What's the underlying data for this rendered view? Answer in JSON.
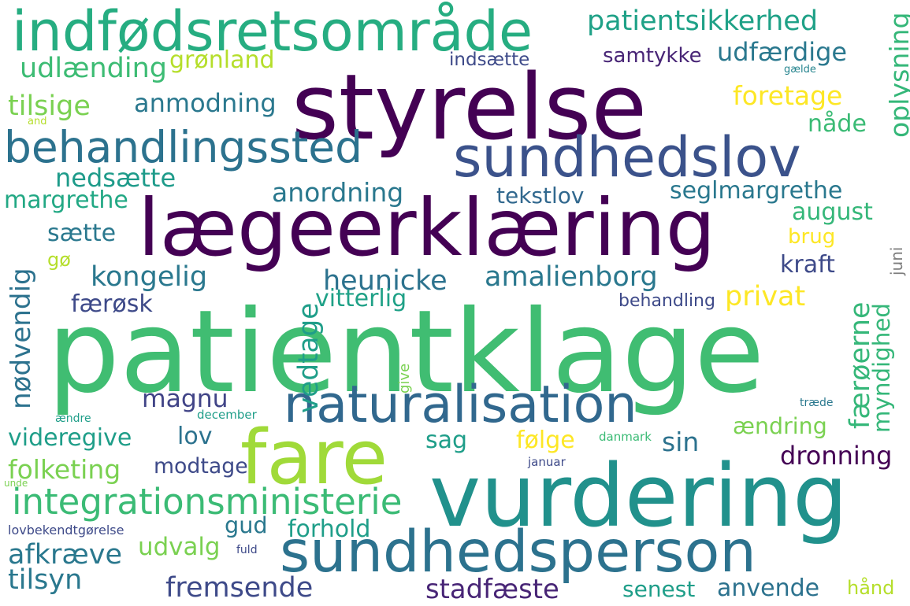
{
  "words": [
    {
      "text": "patientklage",
      "color": "#40bd72"
    },
    {
      "text": "styrelse",
      "color": "#440154"
    },
    {
      "text": "lægeerklæring",
      "color": "#440154"
    },
    {
      "text": "vurdering",
      "color": "#21918c"
    },
    {
      "text": "indfødsretsområde",
      "color": "#26ad81"
    },
    {
      "text": "sundhedslov",
      "color": "#3b528b"
    },
    {
      "text": "fare",
      "color": "#a0da39"
    },
    {
      "text": "sundhedsperson",
      "color": "#2c728e"
    },
    {
      "text": "naturalisation",
      "color": "#31688e"
    },
    {
      "text": "behandlingssted",
      "color": "#2c728e"
    },
    {
      "text": "integrationsministerie",
      "color": "#3bbb75"
    },
    {
      "text": "patientsikkerhed",
      "color": "#1fa187"
    },
    {
      "text": "udfærdige",
      "color": "#2a788e"
    },
    {
      "text": "udlænding",
      "color": "#3dbc74"
    },
    {
      "text": "grønland",
      "color": "#b5de2b"
    },
    {
      "text": "indsætte",
      "color": "#3e4a89"
    },
    {
      "text": "samtykke",
      "color": "#482576"
    },
    {
      "text": "gælde",
      "color": "#25848e"
    },
    {
      "text": "tilsige",
      "color": "#7ad151"
    },
    {
      "text": "anmodning",
      "color": "#2a788e"
    },
    {
      "text": "foretage",
      "color": "#fde725"
    },
    {
      "text": "and",
      "color": "#b5de2b"
    },
    {
      "text": "nåde",
      "color": "#3bbb75"
    },
    {
      "text": "oplysning",
      "color": "#35b779"
    },
    {
      "text": "nedsætte",
      "color": "#1e9b8a"
    },
    {
      "text": "tekstlov",
      "color": "#31688e"
    },
    {
      "text": "margrethe",
      "color": "#22a884"
    },
    {
      "text": "anordning",
      "color": "#2a788e"
    },
    {
      "text": "seglmargrethe",
      "color": "#2a788e"
    },
    {
      "text": "august",
      "color": "#35b779"
    },
    {
      "text": "sætte",
      "color": "#2a788e"
    },
    {
      "text": "brug",
      "color": "#fde725"
    },
    {
      "text": "gø",
      "color": "#b5de2b"
    },
    {
      "text": "kraft",
      "color": "#3e4a89"
    },
    {
      "text": "juni",
      "color": "#7e7e7e"
    },
    {
      "text": "nødvendig",
      "color": "#2c728e"
    },
    {
      "text": "kongelig",
      "color": "#2a788e"
    },
    {
      "text": "heunicke",
      "color": "#2c728e"
    },
    {
      "text": "amalienborg",
      "color": "#2a788e"
    },
    {
      "text": "færøsk",
      "color": "#3e4a89"
    },
    {
      "text": "vitterlig",
      "color": "#1fa187"
    },
    {
      "text": "privat",
      "color": "#fde725"
    },
    {
      "text": "behandling",
      "color": "#3e4a89"
    },
    {
      "text": "vedtage",
      "color": "#1f9e89"
    },
    {
      "text": "færøerne",
      "color": "#35b779"
    },
    {
      "text": "myndighed",
      "color": "#35b779"
    },
    {
      "text": "magnu",
      "color": "#414487"
    },
    {
      "text": "give",
      "color": "#7ad151"
    },
    {
      "text": "ændre",
      "color": "#1f9e89"
    },
    {
      "text": "december",
      "color": "#1f9e89"
    },
    {
      "text": "træde",
      "color": "#2a788e"
    },
    {
      "text": "videregive",
      "color": "#1f9e89"
    },
    {
      "text": "lov",
      "color": "#2c728e"
    },
    {
      "text": "ændring",
      "color": "#7ad151"
    },
    {
      "text": "sag",
      "color": "#1f9e89"
    },
    {
      "text": "følge",
      "color": "#fde725"
    },
    {
      "text": "danmark",
      "color": "#3bbb75"
    },
    {
      "text": "sin",
      "color": "#2c728e"
    },
    {
      "text": "dronning",
      "color": "#440154"
    },
    {
      "text": "folketing",
      "color": "#7ad151"
    },
    {
      "text": "modtage",
      "color": "#3e4a89"
    },
    {
      "text": "januar",
      "color": "#3e4a89"
    },
    {
      "text": "unde",
      "color": "#7ad151"
    },
    {
      "text": "gud",
      "color": "#2a788e"
    },
    {
      "text": "forhold",
      "color": "#1f9e89"
    },
    {
      "text": "lovbekendtgørelse",
      "color": "#3e4a89"
    },
    {
      "text": "fuld",
      "color": "#3e4a89"
    },
    {
      "text": "afkræve",
      "color": "#2a788e"
    },
    {
      "text": "udvalg",
      "color": "#7ad151"
    },
    {
      "text": "tilsyn",
      "color": "#2a788e"
    },
    {
      "text": "fremsende",
      "color": "#3e4a89"
    },
    {
      "text": "stadfæste",
      "color": "#482576"
    },
    {
      "text": "senest",
      "color": "#1f9e89"
    },
    {
      "text": "anvende",
      "color": "#2c728e"
    },
    {
      "text": "hånd",
      "color": "#b5de2b"
    }
  ]
}
